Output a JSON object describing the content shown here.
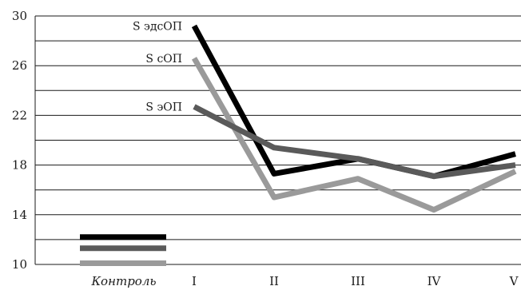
{
  "chart_data": {
    "type": "line",
    "categories": [
      "Контроль",
      "I",
      "II",
      "III",
      "IV",
      "V"
    ],
    "ylim": [
      10,
      30
    ],
    "yticks": [
      10,
      14,
      18,
      22,
      26,
      30
    ],
    "grid": true,
    "series": [
      {
        "name": "S эдсОП",
        "color": "#000000",
        "values": [
          12.2,
          29.2,
          17.3,
          18.5,
          17.1,
          18.9
        ]
      },
      {
        "name": "S сОП",
        "color": "#9a9a9a",
        "values": [
          10.1,
          26.6,
          15.4,
          16.9,
          14.4,
          17.5
        ]
      },
      {
        "name": "S эОП",
        "color": "#5a5a5a",
        "values": [
          11.3,
          22.7,
          19.4,
          18.5,
          17.1,
          18.0
        ]
      }
    ]
  }
}
